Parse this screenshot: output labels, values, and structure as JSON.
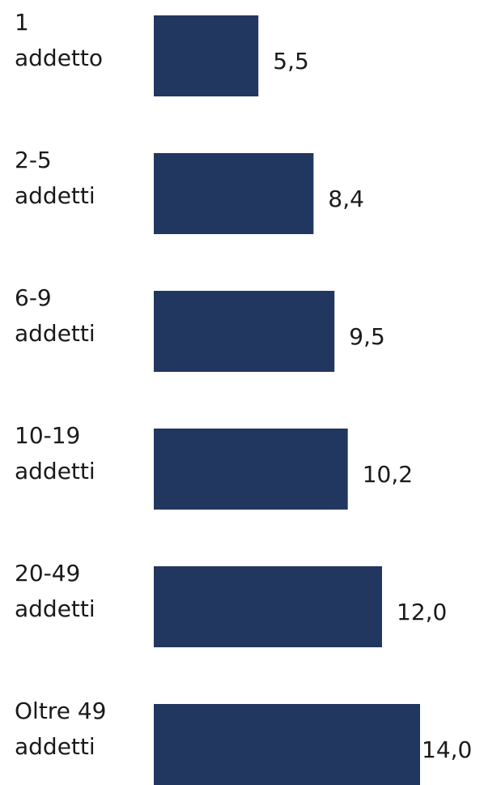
{
  "chart_data": {
    "type": "bar",
    "orientation": "horizontal",
    "categories": [
      [
        "1",
        "addetto"
      ],
      [
        "2-5",
        "addetti"
      ],
      [
        "6-9",
        "addetti"
      ],
      [
        "10-19",
        "addetti"
      ],
      [
        "20-49",
        "addetti"
      ],
      [
        "Oltre 49",
        "addetti"
      ]
    ],
    "values": [
      5.5,
      8.4,
      9.5,
      10.2,
      12.0,
      14.0
    ],
    "value_labels": [
      "5,5",
      "8,4",
      "9,5",
      "10,2",
      "12,0",
      "14,0"
    ],
    "bar_color": "#22375f",
    "grid": false,
    "legend": "none"
  }
}
